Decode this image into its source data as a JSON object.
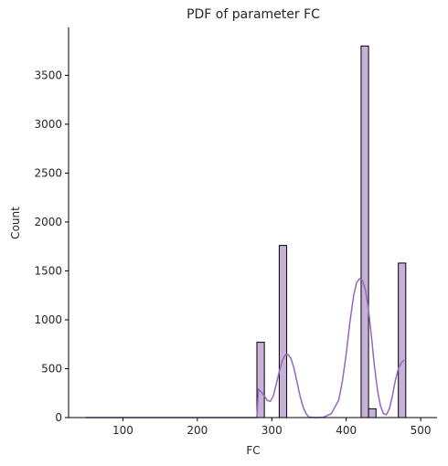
{
  "chart_data": {
    "type": "bar",
    "title": "PDF of parameter FC",
    "xlabel": "FC",
    "ylabel": "Count",
    "xlim": [
      27,
      522
    ],
    "ylim": [
      0,
      3990
    ],
    "xticks": [
      100,
      200,
      300,
      400,
      500
    ],
    "yticks": [
      0,
      500,
      1000,
      1500,
      2000,
      2500,
      3000,
      3500
    ],
    "bin_range": [
      50,
      500
    ],
    "bin_width": 10,
    "series": [
      {
        "kind": "histogram",
        "bins": [
          {
            "x0": 280,
            "x1": 290,
            "count": 770
          },
          {
            "x0": 310,
            "x1": 320,
            "count": 1760
          },
          {
            "x0": 420,
            "x1": 430,
            "count": 3800
          },
          {
            "x0": 430,
            "x1": 440,
            "count": 90
          },
          {
            "x0": 470,
            "x1": 480,
            "count": 1580
          }
        ]
      },
      {
        "kind": "kde",
        "x": [
          50,
          280,
          282,
          286,
          290,
          294,
          298,
          302,
          306,
          310,
          314,
          318,
          322,
          326,
          330,
          334,
          338,
          342,
          346,
          350,
          360,
          370,
          380,
          390,
          395,
          400,
          405,
          410,
          414,
          418,
          422,
          426,
          430,
          434,
          438,
          442,
          446,
          450,
          454,
          458,
          462,
          466,
          470,
          474,
          478
        ],
        "y": [
          0,
          0,
          290,
          260,
          220,
          175,
          165,
          220,
          340,
          470,
          580,
          640,
          645,
          600,
          500,
          360,
          220,
          110,
          40,
          5,
          0,
          5,
          40,
          180,
          380,
          650,
          980,
          1250,
          1380,
          1420,
          1400,
          1300,
          1100,
          820,
          520,
          280,
          120,
          40,
          30,
          90,
          220,
          380,
          500,
          560,
          590
        ]
      }
    ],
    "colors": {
      "bar_fill": "#c7b1d9",
      "bar_edge": "#000000",
      "kde_line": "#9467bd",
      "axis": "#000000",
      "text": "#262626"
    },
    "grid": false
  }
}
